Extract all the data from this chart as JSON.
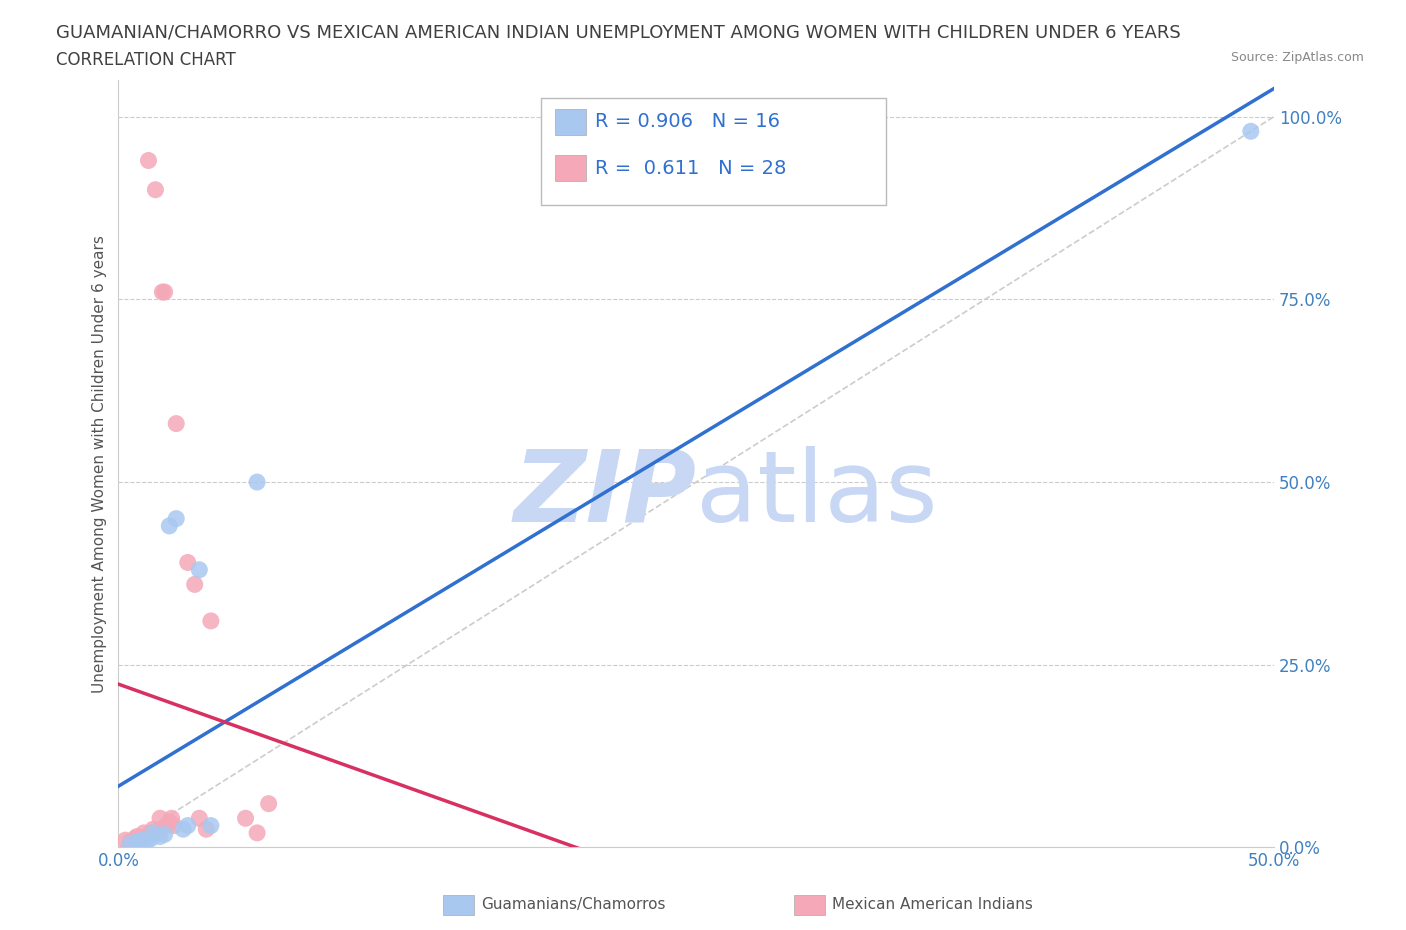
{
  "title": "GUAMANIAN/CHAMORRO VS MEXICAN AMERICAN INDIAN UNEMPLOYMENT AMONG WOMEN WITH CHILDREN UNDER 6 YEARS",
  "subtitle": "CORRELATION CHART",
  "source": "Source: ZipAtlas.com",
  "ylabel": "Unemployment Among Women with Children Under 6 years",
  "xlim": [
    0.0,
    0.5
  ],
  "ylim": [
    0.0,
    1.05
  ],
  "yticks": [
    0.0,
    0.25,
    0.5,
    0.75,
    1.0
  ],
  "ytick_labels": [
    "0.0%",
    "25.0%",
    "50.0%",
    "75.0%",
    "100.0%"
  ],
  "xticks": [
    0.0,
    0.5
  ],
  "xtick_labels": [
    "0.0%",
    "50.0%"
  ],
  "blue_R": 0.906,
  "blue_N": 16,
  "pink_R": 0.611,
  "pink_N": 28,
  "blue_color": "#A8C8F0",
  "pink_color": "#F4A8B8",
  "blue_line_color": "#3070D0",
  "pink_line_color": "#D83060",
  "watermark_color": "#C8D8F4",
  "background_color": "#FFFFFF",
  "grid_color": "#CCCCCC",
  "title_fontsize": 13,
  "subtitle_fontsize": 12,
  "axis_label_fontsize": 11,
  "tick_fontsize": 12,
  "legend_fontsize": 14,
  "blue_scatter_x": [
    0.005,
    0.008,
    0.01,
    0.012,
    0.014,
    0.015,
    0.018,
    0.02,
    0.022,
    0.025,
    0.028,
    0.03,
    0.035,
    0.04,
    0.06,
    0.49
  ],
  "blue_scatter_y": [
    0.005,
    0.008,
    0.01,
    0.008,
    0.012,
    0.02,
    0.015,
    0.018,
    0.44,
    0.45,
    0.025,
    0.03,
    0.38,
    0.03,
    0.5,
    0.98
  ],
  "pink_scatter_x": [
    0.003,
    0.005,
    0.007,
    0.008,
    0.01,
    0.011,
    0.012,
    0.013,
    0.014,
    0.015,
    0.016,
    0.017,
    0.018,
    0.019,
    0.02,
    0.021,
    0.022,
    0.023,
    0.024,
    0.025,
    0.03,
    0.033,
    0.035,
    0.038,
    0.04,
    0.055,
    0.06,
    0.065
  ],
  "pink_scatter_y": [
    0.01,
    0.008,
    0.012,
    0.015,
    0.01,
    0.02,
    0.015,
    0.94,
    0.02,
    0.025,
    0.9,
    0.02,
    0.04,
    0.76,
    0.76,
    0.03,
    0.035,
    0.04,
    0.03,
    0.58,
    0.39,
    0.36,
    0.04,
    0.025,
    0.31,
    0.04,
    0.02,
    0.06
  ],
  "ref_line_color": "#CCCCCC"
}
